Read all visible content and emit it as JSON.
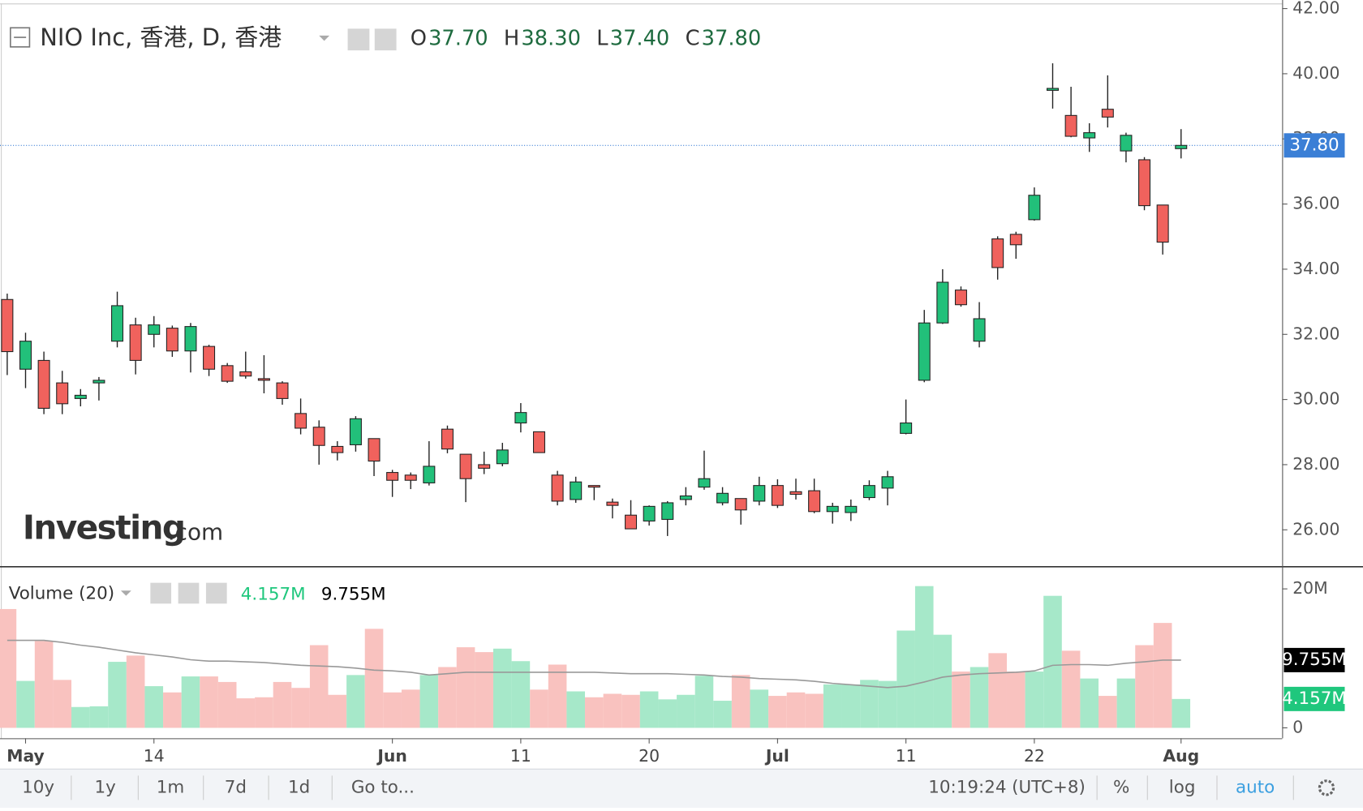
{
  "chart_data": {
    "type": "candlestick",
    "title": "NIO Inc, 香港, D, 香港",
    "ohlc_readout": [
      {
        "key": "O",
        "text": "37.70"
      },
      {
        "key": "H",
        "text": "38.30"
      },
      {
        "key": "L",
        "text": "37.40"
      },
      {
        "key": "C",
        "text": "37.80"
      }
    ],
    "watermark": [
      "Investing",
      ".com"
    ],
    "categories": [
      null,
      "May",
      null,
      null,
      null,
      null,
      null,
      null,
      "14",
      null,
      null,
      null,
      null,
      null,
      null,
      null,
      null,
      null,
      null,
      null,
      null,
      "Jun",
      null,
      null,
      null,
      null,
      null,
      null,
      "11",
      null,
      null,
      null,
      null,
      null,
      null,
      "20",
      null,
      null,
      null,
      null,
      null,
      null,
      "Jul",
      null,
      null,
      null,
      null,
      null,
      null,
      "11",
      null,
      null,
      null,
      null,
      null,
      null,
      "22",
      null,
      null,
      null,
      null,
      null,
      null,
      null,
      "Aug"
    ],
    "open": [
      33.07,
      30.93,
      31.2,
      30.51,
      30.03,
      30.51,
      31.79,
      32.29,
      32.0,
      32.19,
      31.49,
      31.63,
      31.04,
      30.85,
      30.64,
      30.51,
      29.57,
      29.15,
      28.56,
      28.61,
      28.8,
      27.76,
      27.68,
      27.44,
      29.09,
      28.32,
      28.0,
      28.03,
      29.28,
      29.01,
      27.68,
      26.93,
      27.36,
      26.85,
      26.45,
      26.27,
      26.32,
      26.93,
      27.31,
      26.83,
      26.96,
      26.88,
      27.36,
      27.17,
      27.2,
      26.56,
      26.53,
      26.99,
      27.28,
      28.96,
      30.59,
      32.35,
      33.36,
      31.79,
      34.93,
      35.07,
      35.52,
      39.49,
      38.72,
      38.03,
      38.91,
      37.63,
      37.36,
      35.97,
      37.7
    ],
    "high": [
      33.25,
      32.05,
      31.47,
      30.88,
      30.32,
      30.69,
      33.31,
      32.51,
      32.56,
      32.27,
      32.35,
      31.68,
      31.12,
      31.47,
      31.36,
      30.56,
      30.03,
      29.36,
      28.72,
      29.49,
      28.8,
      27.84,
      27.76,
      28.72,
      29.2,
      28.32,
      28.4,
      28.67,
      29.89,
      29.01,
      27.81,
      27.63,
      27.36,
      26.96,
      26.91,
      26.75,
      26.88,
      27.31,
      28.43,
      27.31,
      26.96,
      27.63,
      27.55,
      27.57,
      27.57,
      26.83,
      26.93,
      27.52,
      27.81,
      30.0,
      32.75,
      34.0,
      33.47,
      32.99,
      35.01,
      35.15,
      36.51,
      40.32,
      39.6,
      38.48,
      39.95,
      38.19,
      37.44,
      35.97,
      38.3
    ],
    "low": [
      30.75,
      30.35,
      29.55,
      29.55,
      29.79,
      29.97,
      31.6,
      30.77,
      31.6,
      31.31,
      30.83,
      30.72,
      30.51,
      30.64,
      30.19,
      29.84,
      28.93,
      28.0,
      28.13,
      28.4,
      27.65,
      27.01,
      27.25,
      27.36,
      28.35,
      26.85,
      27.71,
      27.95,
      28.99,
      28.37,
      26.75,
      26.83,
      26.91,
      26.35,
      26.03,
      26.13,
      25.81,
      26.75,
      27.23,
      26.75,
      26.16,
      26.75,
      26.67,
      26.93,
      26.51,
      26.19,
      26.27,
      26.91,
      26.75,
      28.93,
      30.53,
      32.32,
      32.85,
      31.6,
      33.68,
      34.32,
      35.49,
      38.93,
      38.05,
      37.6,
      38.35,
      37.28,
      35.81,
      34.45,
      37.4
    ],
    "close": [
      31.47,
      31.79,
      29.73,
      29.87,
      30.13,
      30.59,
      32.88,
      31.2,
      32.29,
      31.49,
      32.24,
      30.93,
      30.56,
      30.72,
      30.59,
      30.03,
      29.12,
      28.59,
      28.37,
      29.41,
      28.11,
      27.52,
      27.52,
      27.95,
      28.48,
      27.57,
      27.89,
      28.45,
      29.6,
      28.37,
      26.88,
      27.47,
      27.31,
      26.75,
      26.03,
      26.72,
      26.83,
      27.04,
      27.57,
      27.12,
      26.61,
      27.36,
      26.75,
      27.09,
      26.56,
      26.72,
      26.72,
      27.36,
      27.63,
      29.28,
      32.35,
      33.6,
      32.91,
      32.48,
      34.05,
      34.75,
      36.27,
      39.55,
      38.08,
      38.19,
      38.67,
      38.11,
      35.95,
      34.83,
      37.8
    ],
    "up_color": "#22c07a",
    "down_color": "#f0625d",
    "ylim": [
      24.88,
      42.13
    ],
    "yticks": [
      {
        "value": 26,
        "label": "26.00"
      },
      {
        "value": 28,
        "label": "28.00"
      },
      {
        "value": 30,
        "label": "30.00"
      },
      {
        "value": 32,
        "label": "32.00"
      },
      {
        "value": 34,
        "label": "34.00"
      },
      {
        "value": 36,
        "label": "36.00"
      },
      {
        "value": 38,
        "label": "38.00"
      },
      {
        "value": 40,
        "label": "40.00"
      },
      {
        "value": 42,
        "label": "42.00"
      }
    ],
    "last_price": {
      "value": 37.8,
      "label": "37.80",
      "color": "#3b7fd6"
    },
    "volume": {
      "title": "Volume (20)",
      "values": [
        17.1,
        6.75,
        12.5,
        6.9,
        3.0,
        3.1,
        9.5,
        10.4,
        6.0,
        5.1,
        7.4,
        7.4,
        6.6,
        4.25,
        4.4,
        6.6,
        5.75,
        11.9,
        4.75,
        7.6,
        14.25,
        5.1,
        5.5,
        7.6,
        8.75,
        11.6,
        10.9,
        11.4,
        9.6,
        5.5,
        9.1,
        5.25,
        4.4,
        4.9,
        4.75,
        5.25,
        4.1,
        4.75,
        7.5,
        3.9,
        7.6,
        5.5,
        4.6,
        5.1,
        4.9,
        6.25,
        6.25,
        6.9,
        6.75,
        14.0,
        20.4,
        13.4,
        8.1,
        8.75,
        10.75,
        8.1,
        8.1,
        19.0,
        11.1,
        7.1,
        4.6,
        7.1,
        11.9,
        15.1,
        4.157
      ],
      "ma": [
        12.6,
        12.6,
        12.6,
        12.3,
        11.9,
        11.6,
        11.2,
        10.8,
        10.5,
        10.2,
        9.8,
        9.6,
        9.6,
        9.5,
        9.4,
        9.2,
        9.0,
        8.9,
        8.8,
        8.6,
        8.3,
        8.2,
        8.0,
        7.6,
        7.8,
        8.0,
        8.0,
        8.0,
        8.0,
        8.0,
        8.0,
        8.0,
        8.0,
        7.9,
        7.8,
        7.8,
        7.8,
        7.7,
        7.6,
        7.4,
        7.3,
        7.1,
        7.0,
        6.9,
        6.7,
        6.4,
        6.2,
        6.0,
        5.8,
        6.0,
        6.6,
        7.3,
        7.6,
        7.8,
        7.9,
        8.0,
        8.2,
        9.0,
        9.1,
        9.1,
        9.0,
        9.3,
        9.5,
        9.755,
        9.755
      ],
      "up_color": "#a6e8c9",
      "down_color": "#f9c2bf",
      "ma_color": "#999999",
      "volume_readout": {
        "value": 4.157,
        "label": "4.157M",
        "color": "#1fc77d"
      },
      "ma_readout": {
        "value": 9.755,
        "label": "9.755M",
        "color": "#000000"
      },
      "ylim": [
        -1.5,
        23
      ],
      "yticks": [
        0,
        {
          "value": 20,
          "label": "20M"
        }
      ]
    }
  },
  "toolbar": {
    "ranges": [
      "10y",
      "1y",
      "1m",
      "7d",
      "1d"
    ],
    "goto": "Go to...",
    "time": "10:19:24",
    "timezone": "(UTC+8)",
    "options": [
      "%",
      "log",
      "auto"
    ]
  }
}
